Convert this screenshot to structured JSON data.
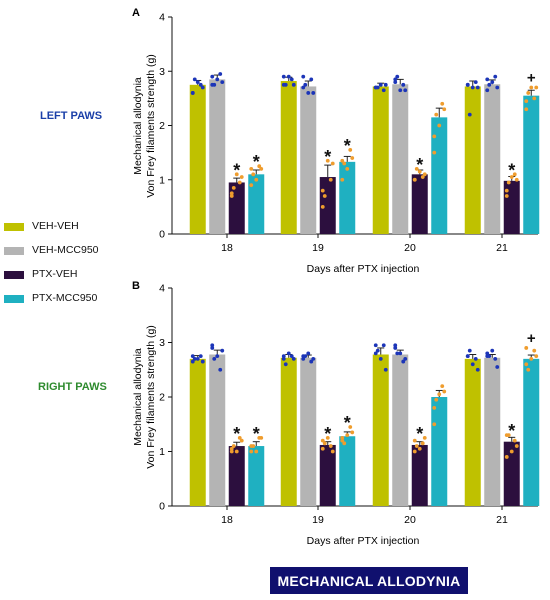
{
  "labels": {
    "left_paws": "LEFT PAWS",
    "right_paws": "RIGHT PAWS",
    "banner": "MECHANICAL ALLODYNIA"
  },
  "colors": {
    "veh_veh": "#bfc100",
    "veh_mcc950": "#b4b4b4",
    "ptx_veh": "#2c0f3e",
    "ptx_mcc950": "#1fb0c1",
    "dots_blue": "#1c35b8",
    "dots_orange": "#ef9d2e",
    "left_paws_text": "#1a3fa8",
    "right_paws_text": "#2e8b2e",
    "banner_bg": "#10106e"
  },
  "legend": [
    {
      "name": "VEH-VEH",
      "color": "#bfc100"
    },
    {
      "name": "VEH-MCC950",
      "color": "#b4b4b4"
    },
    {
      "name": "PTX-VEH",
      "color": "#2c0f3e"
    },
    {
      "name": "PTX-MCC950",
      "color": "#1fb0c1"
    }
  ],
  "chart_data": [
    {
      "type": "bar",
      "panel": "A",
      "side_label": "LEFT PAWS",
      "categories": [
        "18",
        "19",
        "20",
        "21"
      ],
      "xlabel": "Days after PTX injection",
      "ylabel_line1": "Mechanical allodynia",
      "ylabel_line2": "Von Frey filaments strength (g)",
      "ylim": [
        0,
        4
      ],
      "yticks": [
        "0",
        "1",
        "2",
        "3",
        "4"
      ],
      "series": [
        {
          "name": "VEH-VEH",
          "values": [
            2.75,
            2.82,
            2.72,
            2.72
          ],
          "errors": [
            0.08,
            0.07,
            0.06,
            0.1
          ],
          "points": [
            [
              2.6,
              2.7,
              2.85,
              2.75,
              2.8,
              2.6
            ],
            [
              2.9,
              2.75,
              2.75,
              2.85,
              2.9,
              2.75
            ],
            [
              2.7,
              2.75,
              2.7,
              2.65,
              2.75,
              2.7
            ],
            [
              2.75,
              2.7,
              2.2,
              2.8,
              2.7,
              2.75
            ]
          ]
        },
        {
          "name": "VEH-MCC950",
          "values": [
            2.85,
            2.72,
            2.76,
            2.76
          ],
          "errors": [
            0.08,
            0.1,
            0.09,
            0.08
          ],
          "points": [
            [
              2.9,
              2.8,
              2.75,
              2.95,
              2.85,
              2.75
            ],
            [
              2.9,
              2.6,
              2.75,
              2.85,
              2.6,
              2.7
            ],
            [
              2.8,
              2.65,
              2.9,
              2.75,
              2.65,
              2.85
            ],
            [
              2.85,
              2.7,
              2.75,
              2.9,
              2.8,
              2.65
            ]
          ]
        },
        {
          "name": "PTX-VEH",
          "values": [
            0.95,
            1.05,
            1.1,
            0.98
          ],
          "errors": [
            0.08,
            0.22,
            0.08,
            0.08
          ],
          "points": [
            [
              0.7,
              1.05,
              0.85,
              0.95,
              1.1,
              0.75
            ],
            [
              0.5,
              1.3,
              0.7,
              1.0,
              1.35,
              0.8
            ],
            [
              1.0,
              1.1,
              1.2,
              1.05,
              1.15,
              1.0
            ],
            [
              0.7,
              1.0,
              0.95,
              1.1,
              1.05,
              0.8
            ]
          ]
        },
        {
          "name": "PTX-MCC950",
          "values": [
            1.1,
            1.33,
            2.15,
            2.55
          ],
          "errors": [
            0.08,
            0.1,
            0.17,
            0.1
          ],
          "points": [
            [
              0.9,
              1.2,
              1.1,
              1.25,
              1.0,
              1.2
            ],
            [
              1.0,
              1.4,
              1.3,
              1.55,
              1.2,
              1.35
            ],
            [
              1.5,
              2.3,
              2.2,
              2.4,
              2.0,
              1.8
            ],
            [
              2.3,
              2.7,
              2.6,
              2.5,
              2.7,
              2.45
            ]
          ]
        }
      ],
      "annotations": [
        {
          "category": "18",
          "series": "PTX-VEH",
          "symbol": "*"
        },
        {
          "category": "18",
          "series": "PTX-MCC950",
          "symbol": "*"
        },
        {
          "category": "19",
          "series": "PTX-VEH",
          "symbol": "*"
        },
        {
          "category": "19",
          "series": "PTX-MCC950",
          "symbol": "*"
        },
        {
          "category": "20",
          "series": "PTX-VEH",
          "symbol": "*"
        },
        {
          "category": "21",
          "series": "PTX-VEH",
          "symbol": "*"
        },
        {
          "category": "21",
          "series": "PTX-MCC950",
          "symbol": "+"
        }
      ]
    },
    {
      "type": "bar",
      "panel": "B",
      "side_label": "RIGHT PAWS",
      "categories": [
        "18",
        "19",
        "20",
        "21"
      ],
      "xlabel": "Days after PTX injection",
      "ylabel_line1": "Mechanical allodynia",
      "ylabel_line2": "Von Frey filaments strength (g)",
      "ylim": [
        0,
        4
      ],
      "yticks": [
        "0",
        "1",
        "2",
        "3",
        "4"
      ],
      "series": [
        {
          "name": "VEH-VEH",
          "values": [
            2.7,
            2.72,
            2.78,
            2.7
          ],
          "errors": [
            0.06,
            0.06,
            0.12,
            0.08
          ],
          "points": [
            [
              2.75,
              2.65,
              2.7,
              2.75,
              2.7,
              2.65
            ],
            [
              2.75,
              2.7,
              2.6,
              2.75,
              2.8,
              2.7
            ],
            [
              2.95,
              2.5,
              2.85,
              2.95,
              2.7,
              2.8
            ],
            [
              2.75,
              2.5,
              2.85,
              2.7,
              2.6,
              2.75
            ]
          ]
        },
        {
          "name": "VEH-MCC950",
          "values": [
            2.78,
            2.72,
            2.78,
            2.72
          ],
          "errors": [
            0.08,
            0.05,
            0.08,
            0.06
          ],
          "points": [
            [
              2.95,
              2.85,
              2.7,
              2.5,
              2.75,
              2.9
            ],
            [
              2.75,
              2.7,
              2.75,
              2.65,
              2.8,
              2.7
            ],
            [
              2.9,
              2.7,
              2.8,
              2.65,
              2.8,
              2.95
            ],
            [
              2.8,
              2.55,
              2.75,
              2.7,
              2.85,
              2.75
            ]
          ]
        },
        {
          "name": "PTX-VEH",
          "values": [
            1.1,
            1.12,
            1.12,
            1.18
          ],
          "errors": [
            0.07,
            0.06,
            0.06,
            0.08
          ],
          "points": [
            [
              1.0,
              1.2,
              1.1,
              1.25,
              1.0,
              1.05
            ],
            [
              1.2,
              1.0,
              1.15,
              1.1,
              1.25,
              1.05
            ],
            [
              1.0,
              1.25,
              1.1,
              1.15,
              1.05,
              1.2
            ],
            [
              0.9,
              1.1,
              1.3,
              1.2,
              1.0,
              1.3
            ]
          ]
        },
        {
          "name": "PTX-MCC950",
          "values": [
            1.1,
            1.28,
            2.0,
            2.7
          ],
          "errors": [
            0.08,
            0.08,
            0.12,
            0.07
          ],
          "points": [
            [
              1.0,
              1.25,
              1.1,
              1.25,
              1.0,
              1.1
            ],
            [
              1.2,
              1.35,
              1.15,
              1.45,
              1.3,
              1.25
            ],
            [
              1.5,
              2.1,
              1.95,
              2.2,
              2.05,
              1.8
            ],
            [
              2.9,
              2.75,
              2.5,
              2.85,
              2.7,
              2.6
            ]
          ]
        }
      ],
      "annotations": [
        {
          "category": "18",
          "series": "PTX-VEH",
          "symbol": "*"
        },
        {
          "category": "18",
          "series": "PTX-MCC950",
          "symbol": "*"
        },
        {
          "category": "19",
          "series": "PTX-VEH",
          "symbol": "*"
        },
        {
          "category": "19",
          "series": "PTX-MCC950",
          "symbol": "*"
        },
        {
          "category": "20",
          "series": "PTX-VEH",
          "symbol": "*"
        },
        {
          "category": "21",
          "series": "PTX-VEH",
          "symbol": "*"
        },
        {
          "category": "21",
          "series": "PTX-MCC950",
          "symbol": "+"
        }
      ]
    }
  ]
}
